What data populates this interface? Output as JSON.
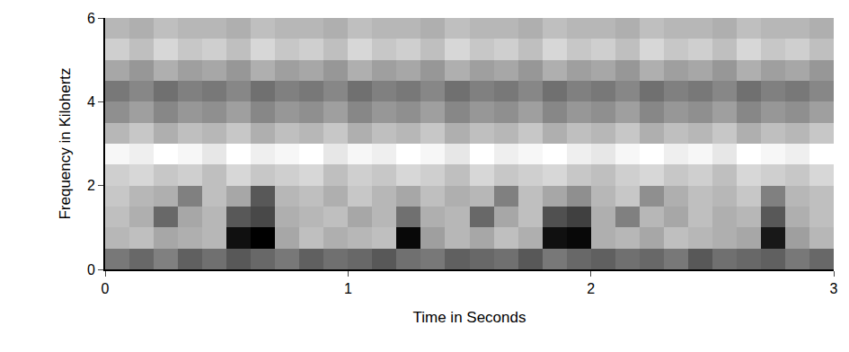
{
  "chart_data": {
    "type": "heatmap",
    "x_label": "Time in Seconds",
    "y_label": "Frequency in Kilohertz",
    "x": [
      0.05,
      0.15,
      0.25,
      0.35,
      0.45,
      0.55,
      0.65,
      0.75,
      0.85,
      0.95,
      1.05,
      1.15,
      1.25,
      1.35,
      1.45,
      1.55,
      1.65,
      1.75,
      1.85,
      1.95,
      2.05,
      2.15,
      2.25,
      2.35,
      2.45,
      2.55,
      2.65,
      2.75,
      2.85,
      2.95
    ],
    "y": [
      0.25,
      0.75,
      1.25,
      1.75,
      2.25,
      2.75,
      3.25,
      3.75,
      4.25,
      4.75,
      5.25,
      5.75
    ],
    "z": [
      [
        62,
        66,
        60,
        68,
        64,
        70,
        66,
        62,
        68,
        64,
        66,
        70,
        64,
        62,
        68,
        66,
        64,
        70,
        62,
        66,
        68,
        64,
        66,
        62,
        70,
        64,
        66,
        68,
        62,
        66
      ],
      [
        46,
        44,
        50,
        48,
        46,
        88,
        92,
        50,
        44,
        48,
        46,
        44,
        90,
        52,
        46,
        50,
        44,
        48,
        88,
        90,
        48,
        46,
        50,
        44,
        46,
        48,
        50,
        86,
        52,
        46
      ],
      [
        44,
        48,
        66,
        50,
        46,
        70,
        74,
        48,
        46,
        44,
        50,
        46,
        64,
        48,
        46,
        66,
        50,
        44,
        72,
        76,
        48,
        60,
        46,
        50,
        44,
        48,
        46,
        70,
        48,
        44
      ],
      [
        42,
        46,
        48,
        60,
        44,
        50,
        70,
        46,
        44,
        48,
        42,
        46,
        50,
        44,
        48,
        46,
        60,
        44,
        50,
        56,
        46,
        42,
        56,
        48,
        44,
        46,
        42,
        60,
        46,
        44
      ],
      [
        40,
        38,
        42,
        40,
        44,
        38,
        42,
        40,
        38,
        44,
        40,
        42,
        38,
        40,
        44,
        38,
        42,
        40,
        38,
        42,
        44,
        40,
        38,
        42,
        40,
        44,
        38,
        40,
        42,
        38
      ],
      [
        30,
        32,
        28,
        30,
        34,
        28,
        32,
        30,
        28,
        34,
        30,
        32,
        28,
        30,
        34,
        28,
        32,
        30,
        28,
        32,
        34,
        30,
        28,
        32,
        30,
        34,
        28,
        30,
        32,
        28
      ],
      [
        46,
        42,
        48,
        44,
        46,
        42,
        48,
        44,
        46,
        42,
        48,
        44,
        46,
        42,
        48,
        44,
        46,
        42,
        48,
        44,
        46,
        42,
        48,
        44,
        46,
        42,
        48,
        44,
        46,
        42
      ],
      [
        56,
        52,
        58,
        54,
        56,
        52,
        58,
        54,
        56,
        52,
        58,
        54,
        56,
        52,
        58,
        54,
        56,
        52,
        58,
        54,
        56,
        52,
        58,
        54,
        56,
        52,
        58,
        54,
        56,
        52
      ],
      [
        62,
        58,
        64,
        60,
        62,
        58,
        64,
        60,
        62,
        58,
        64,
        60,
        62,
        58,
        64,
        60,
        62,
        58,
        64,
        60,
        62,
        58,
        64,
        60,
        62,
        58,
        64,
        60,
        62,
        58
      ],
      [
        50,
        54,
        48,
        52,
        50,
        54,
        48,
        52,
        50,
        54,
        48,
        52,
        50,
        54,
        48,
        52,
        50,
        54,
        48,
        52,
        50,
        54,
        48,
        52,
        50,
        54,
        48,
        52,
        50,
        54
      ],
      [
        40,
        44,
        38,
        42,
        40,
        44,
        38,
        42,
        40,
        44,
        38,
        42,
        40,
        44,
        38,
        42,
        40,
        44,
        38,
        42,
        40,
        44,
        38,
        42,
        40,
        44,
        38,
        42,
        40,
        44
      ],
      [
        46,
        48,
        44,
        46,
        46,
        48,
        44,
        46,
        46,
        48,
        44,
        46,
        46,
        48,
        44,
        46,
        46,
        48,
        44,
        46,
        46,
        48,
        44,
        46,
        46,
        48,
        44,
        46,
        46,
        48
      ]
    ],
    "xlim": [
      0,
      3
    ],
    "ylim": [
      0,
      6
    ],
    "xticks": [
      0,
      1,
      2,
      3
    ],
    "yticks": [
      0,
      2,
      4,
      6
    ]
  }
}
